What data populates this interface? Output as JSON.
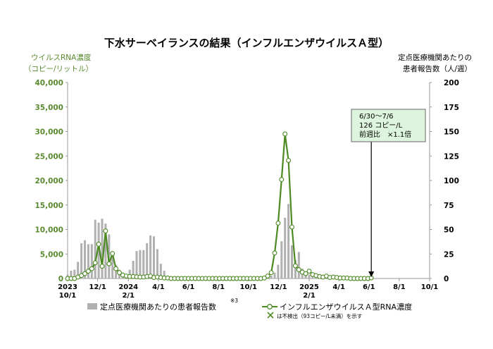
{
  "chart_data": {
    "type": "bar+line",
    "title": "下水サーベイランスの結果（インフルエンザウイルスＡ型）",
    "left_axis": {
      "label_line1": "ウイルスRNA濃度",
      "label_line2": "（コピー/リットル）",
      "ylim": [
        0,
        40000
      ],
      "ticks": [
        "0",
        "5,000",
        "10,000",
        "15,000",
        "20,000",
        "25,000",
        "30,000",
        "35,000",
        "40,000"
      ],
      "color": "#5a8a2e"
    },
    "right_axis": {
      "label_line1": "定点医療機関あたりの",
      "label_line2": "患者報告数（人/週）",
      "ylim": [
        0,
        200
      ],
      "ticks": [
        "0",
        "25",
        "50",
        "75",
        "100",
        "125",
        "150",
        "175",
        "200"
      ]
    },
    "x_ticks": [
      {
        "line1": "2023",
        "line2": "10/1",
        "week": 0
      },
      {
        "line1": "12/1",
        "line2": "",
        "week": 8.7
      },
      {
        "line1": "2024",
        "line2": "2/1",
        "week": 17.6
      },
      {
        "line1": "4/1",
        "line2": "",
        "week": 26.3
      },
      {
        "line1": "6/1",
        "line2": "",
        "week": 35
      },
      {
        "line1": "8/1",
        "line2": "",
        "week": 43.7
      },
      {
        "line1": "10/1",
        "line2": "",
        "week": 52.4
      },
      {
        "line1": "12/1",
        "line2": "",
        "week": 61.1
      },
      {
        "line1": "2025",
        "line2": "2/1",
        "week": 70
      },
      {
        "line1": "4/1",
        "line2": "",
        "week": 78.6
      },
      {
        "line1": "6/1",
        "line2": "",
        "week": 87.3
      },
      {
        "line1": "8/1",
        "line2": "",
        "week": 96.1
      },
      {
        "line1": "10/1",
        "line2": "",
        "week": 104.9
      }
    ],
    "bar_series": {
      "name": "定点医療機関あたりの患者報告数",
      "color": "#b0b0b0",
      "start_week": 0,
      "values": [
        4,
        8,
        9,
        17,
        36,
        39,
        35,
        35,
        60,
        57,
        61,
        56,
        45,
        24,
        14,
        9,
        6,
        4,
        9,
        18,
        28,
        29,
        29,
        36,
        44,
        43,
        30,
        15,
        8,
        3,
        1,
        0.5,
        0.3,
        0.2,
        0.1,
        0.1,
        0.1,
        0.1,
        0.1,
        0.1,
        0.1,
        0.1,
        0.1,
        0.1,
        0.1,
        0.1,
        0.1,
        0.1,
        0.1,
        0.1,
        0.1,
        0.1,
        0.2,
        0.2,
        0.2,
        0.3,
        0.5,
        0.8,
        1.5,
        3,
        6,
        14,
        38,
        62,
        76,
        34,
        19,
        27,
        10,
        6,
        4,
        3,
        2,
        1.5,
        1,
        0.7,
        0.5,
        0.3,
        0.2,
        0.2,
        0.1,
        0.1,
        0.1,
        0.1,
        0.1,
        0.1,
        0.1,
        0.1,
        0.1
      ]
    },
    "line_series": {
      "name": "インフルエンザウイルスＡ型RNA濃度",
      "color": "#4d8a22",
      "points": [
        {
          "w": 0,
          "v": 0
        },
        {
          "w": 1,
          "v": 0
        },
        {
          "w": 2,
          "v": 0
        },
        {
          "w": 3,
          "v": 300
        },
        {
          "w": 4,
          "v": 600
        },
        {
          "w": 5,
          "v": 1000
        },
        {
          "w": 6,
          "v": 1500
        },
        {
          "w": 7,
          "v": 2000
        },
        {
          "w": 8,
          "v": 3200
        },
        {
          "w": 9,
          "v": 7000
        },
        {
          "w": 10,
          "v": 2500
        },
        {
          "w": 11,
          "v": 9700
        },
        {
          "w": 12,
          "v": 3000
        },
        {
          "w": 13,
          "v": 5100
        },
        {
          "w": 14,
          "v": 2000
        },
        {
          "w": 15,
          "v": 1200
        },
        {
          "w": 16,
          "v": 700
        },
        {
          "w": 17,
          "v": 500
        },
        {
          "w": 18,
          "v": 400
        },
        {
          "w": 19,
          "v": 400
        },
        {
          "w": 20,
          "v": 350
        },
        {
          "w": 21,
          "v": 300
        },
        {
          "w": 22,
          "v": 300
        },
        {
          "w": 23,
          "v": 400
        },
        {
          "w": 24,
          "v": 500
        },
        {
          "w": 25,
          "v": 200
        },
        {
          "w": 26,
          "v": 300
        },
        {
          "w": 27,
          "v": 200
        },
        {
          "w": 28,
          "v": 100
        },
        {
          "w": 29,
          "v": 100
        },
        {
          "w": 30,
          "v": 0
        },
        {
          "w": 31,
          "v": 0
        },
        {
          "w": 32,
          "v": 0
        },
        {
          "w": 33,
          "v": 0
        },
        {
          "w": 34,
          "v": 0
        },
        {
          "w": 35,
          "v": 0
        },
        {
          "w": 36,
          "v": 0
        },
        {
          "w": 37,
          "v": 0
        },
        {
          "w": 38,
          "v": 0
        },
        {
          "w": 39,
          "v": 0
        },
        {
          "w": 40,
          "v": 0
        },
        {
          "w": 41,
          "v": 0
        },
        {
          "w": 42,
          "v": 0
        },
        {
          "w": 43,
          "v": 0
        },
        {
          "w": 44,
          "v": 0
        },
        {
          "w": 45,
          "v": 0
        },
        {
          "w": 46,
          "v": 0
        },
        {
          "w": 47,
          "v": 0
        },
        {
          "w": 48,
          "v": 0
        },
        {
          "w": 49,
          "v": 0
        },
        {
          "w": 50,
          "v": 0
        },
        {
          "w": 51,
          "v": 0
        },
        {
          "w": 52,
          "v": 0
        },
        {
          "w": 53,
          "v": 0
        },
        {
          "w": 54,
          "v": 0
        },
        {
          "w": 55,
          "v": 0
        },
        {
          "w": 56,
          "v": 0
        },
        {
          "w": 57,
          "v": 100
        },
        {
          "w": 58,
          "v": 500
        },
        {
          "w": 59,
          "v": 1200
        },
        {
          "w": 60,
          "v": 5200
        },
        {
          "w": 61,
          "v": 11300
        },
        {
          "w": 62,
          "v": 20200
        },
        {
          "w": 63,
          "v": 29500
        },
        {
          "w": 64,
          "v": 24100
        },
        {
          "w": 65,
          "v": 10500
        },
        {
          "w": 66,
          "v": 2600
        },
        {
          "w": 67,
          "v": 1800
        },
        {
          "w": 68,
          "v": 1300
        },
        {
          "w": 69,
          "v": 1000
        },
        {
          "w": 70,
          "v": 1500
        },
        {
          "w": 71,
          "v": 800
        },
        {
          "w": 72,
          "v": 600
        },
        {
          "w": 73,
          "v": 400
        },
        {
          "w": 74,
          "v": 300
        },
        {
          "w": 75,
          "v": 500
        },
        {
          "w": 76,
          "v": 200
        },
        {
          "w": 77,
          "v": 300
        },
        {
          "w": 78,
          "v": 200
        },
        {
          "w": 79,
          "v": 100
        },
        {
          "w": 80,
          "v": 100
        },
        {
          "w": 81,
          "v": 100
        },
        {
          "w": 82,
          "v": 0
        },
        {
          "w": 83,
          "v": 0
        },
        {
          "w": 84,
          "v": 0
        },
        {
          "w": 85,
          "v": 0
        },
        {
          "w": 86,
          "v": 0
        },
        {
          "w": 87,
          "v": 0
        },
        {
          "w": 88,
          "v": 126
        }
      ]
    },
    "annotation": {
      "line1": "6/30～7/6",
      "line2": "126 コピー/L",
      "line3": "前週比　×1.1倍",
      "week": 88
    },
    "legend": {
      "bar_label": "定点医療機関あたりの患者報告数",
      "bar_superscript": "※3",
      "line_label": "インフルエンザウイルスＡ型RNA濃度",
      "nd_label": "は不検出（93コピー/L未満）を示す"
    },
    "grid": false
  }
}
